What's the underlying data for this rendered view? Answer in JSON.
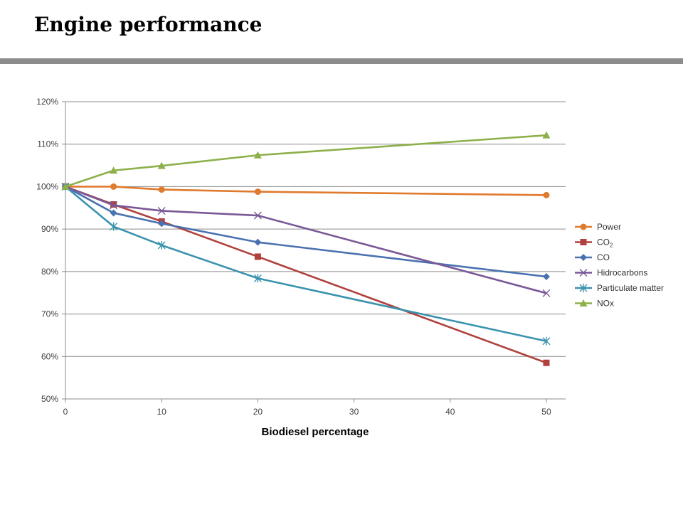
{
  "page": {
    "title": "Engine performance"
  },
  "chart_data": {
    "type": "line",
    "title": "",
    "xlabel": "Biodiesel percentage",
    "ylabel": "",
    "x": [
      0,
      5,
      10,
      20,
      50
    ],
    "xticks": [
      0,
      10,
      20,
      30,
      40,
      50
    ],
    "xlim": [
      0,
      52
    ],
    "ylim": [
      0.5,
      1.2
    ],
    "yticks": [
      {
        "value": 0.5,
        "label": "50%"
      },
      {
        "value": 0.6,
        "label": "60%"
      },
      {
        "value": 0.7,
        "label": "70%"
      },
      {
        "value": 0.8,
        "label": "80%"
      },
      {
        "value": 0.9,
        "label": "90%"
      },
      {
        "value": 1.0,
        "label": "100%"
      },
      {
        "value": 1.1,
        "label": "110%"
      },
      {
        "value": 1.2,
        "label": "120%"
      }
    ],
    "grid": "horizontal",
    "legend_position": "right",
    "series": [
      {
        "name": "Power",
        "name_main": "Power",
        "name_sub": "",
        "color": "#E07A2E",
        "marker": "circle",
        "values": [
          1.0,
          1.0,
          0.993,
          0.988,
          0.98
        ]
      },
      {
        "name": "CO₂",
        "name_main": "CO",
        "name_sub": "2",
        "color": "#B0413E",
        "marker": "square",
        "values": [
          1.0,
          0.958,
          0.918,
          0.835,
          0.585
        ]
      },
      {
        "name": "CO",
        "name_main": "CO",
        "name_sub": "",
        "color": "#4A72B0",
        "marker": "diamond",
        "values": [
          1.0,
          0.938,
          0.913,
          0.869,
          0.788
        ]
      },
      {
        "name": "Hidrocarbons",
        "name_main": "Hidrocarbons",
        "name_sub": "",
        "color": "#7A5896",
        "marker": "x",
        "values": [
          1.0,
          0.956,
          0.943,
          0.932,
          0.749
        ]
      },
      {
        "name": "Particulate matter",
        "name_main": "Particulate matter",
        "name_sub": "",
        "color": "#3A93AE",
        "marker": "star",
        "values": [
          1.0,
          0.906,
          0.862,
          0.784,
          0.636
        ]
      },
      {
        "name": "NOx",
        "name_main": "NOx",
        "name_sub": "",
        "color": "#8DB04A",
        "marker": "triangle",
        "values": [
          1.0,
          1.038,
          1.049,
          1.074,
          1.121
        ]
      }
    ]
  }
}
